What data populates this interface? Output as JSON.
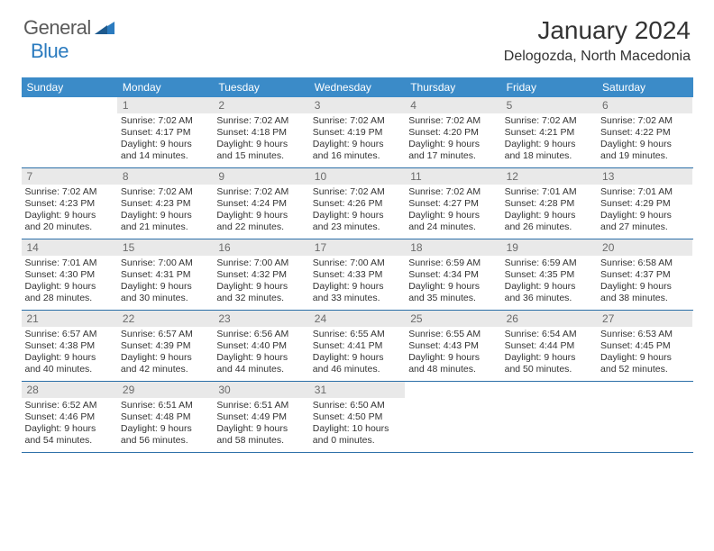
{
  "brand": {
    "text_general": "General",
    "text_blue": "Blue",
    "icon_color": "#2b7bbf"
  },
  "header": {
    "month_title": "January 2024",
    "location": "Delogozda, North Macedonia"
  },
  "colors": {
    "header_row_bg": "#3b8bc8",
    "header_row_text": "#ffffff",
    "daynum_bg": "#e9e9e9",
    "daynum_text": "#6b6b6b",
    "week_divider": "#2b6fa8",
    "body_text": "#333333",
    "background": "#ffffff"
  },
  "day_names": [
    "Sunday",
    "Monday",
    "Tuesday",
    "Wednesday",
    "Thursday",
    "Friday",
    "Saturday"
  ],
  "weeks": [
    [
      {
        "empty": true
      },
      {
        "num": "1",
        "sunrise": "Sunrise: 7:02 AM",
        "sunset": "Sunset: 4:17 PM",
        "daylight": "Daylight: 9 hours and 14 minutes."
      },
      {
        "num": "2",
        "sunrise": "Sunrise: 7:02 AM",
        "sunset": "Sunset: 4:18 PM",
        "daylight": "Daylight: 9 hours and 15 minutes."
      },
      {
        "num": "3",
        "sunrise": "Sunrise: 7:02 AM",
        "sunset": "Sunset: 4:19 PM",
        "daylight": "Daylight: 9 hours and 16 minutes."
      },
      {
        "num": "4",
        "sunrise": "Sunrise: 7:02 AM",
        "sunset": "Sunset: 4:20 PM",
        "daylight": "Daylight: 9 hours and 17 minutes."
      },
      {
        "num": "5",
        "sunrise": "Sunrise: 7:02 AM",
        "sunset": "Sunset: 4:21 PM",
        "daylight": "Daylight: 9 hours and 18 minutes."
      },
      {
        "num": "6",
        "sunrise": "Sunrise: 7:02 AM",
        "sunset": "Sunset: 4:22 PM",
        "daylight": "Daylight: 9 hours and 19 minutes."
      }
    ],
    [
      {
        "num": "7",
        "sunrise": "Sunrise: 7:02 AM",
        "sunset": "Sunset: 4:23 PM",
        "daylight": "Daylight: 9 hours and 20 minutes."
      },
      {
        "num": "8",
        "sunrise": "Sunrise: 7:02 AM",
        "sunset": "Sunset: 4:23 PM",
        "daylight": "Daylight: 9 hours and 21 minutes."
      },
      {
        "num": "9",
        "sunrise": "Sunrise: 7:02 AM",
        "sunset": "Sunset: 4:24 PM",
        "daylight": "Daylight: 9 hours and 22 minutes."
      },
      {
        "num": "10",
        "sunrise": "Sunrise: 7:02 AM",
        "sunset": "Sunset: 4:26 PM",
        "daylight": "Daylight: 9 hours and 23 minutes."
      },
      {
        "num": "11",
        "sunrise": "Sunrise: 7:02 AM",
        "sunset": "Sunset: 4:27 PM",
        "daylight": "Daylight: 9 hours and 24 minutes."
      },
      {
        "num": "12",
        "sunrise": "Sunrise: 7:01 AM",
        "sunset": "Sunset: 4:28 PM",
        "daylight": "Daylight: 9 hours and 26 minutes."
      },
      {
        "num": "13",
        "sunrise": "Sunrise: 7:01 AM",
        "sunset": "Sunset: 4:29 PM",
        "daylight": "Daylight: 9 hours and 27 minutes."
      }
    ],
    [
      {
        "num": "14",
        "sunrise": "Sunrise: 7:01 AM",
        "sunset": "Sunset: 4:30 PM",
        "daylight": "Daylight: 9 hours and 28 minutes."
      },
      {
        "num": "15",
        "sunrise": "Sunrise: 7:00 AM",
        "sunset": "Sunset: 4:31 PM",
        "daylight": "Daylight: 9 hours and 30 minutes."
      },
      {
        "num": "16",
        "sunrise": "Sunrise: 7:00 AM",
        "sunset": "Sunset: 4:32 PM",
        "daylight": "Daylight: 9 hours and 32 minutes."
      },
      {
        "num": "17",
        "sunrise": "Sunrise: 7:00 AM",
        "sunset": "Sunset: 4:33 PM",
        "daylight": "Daylight: 9 hours and 33 minutes."
      },
      {
        "num": "18",
        "sunrise": "Sunrise: 6:59 AM",
        "sunset": "Sunset: 4:34 PM",
        "daylight": "Daylight: 9 hours and 35 minutes."
      },
      {
        "num": "19",
        "sunrise": "Sunrise: 6:59 AM",
        "sunset": "Sunset: 4:35 PM",
        "daylight": "Daylight: 9 hours and 36 minutes."
      },
      {
        "num": "20",
        "sunrise": "Sunrise: 6:58 AM",
        "sunset": "Sunset: 4:37 PM",
        "daylight": "Daylight: 9 hours and 38 minutes."
      }
    ],
    [
      {
        "num": "21",
        "sunrise": "Sunrise: 6:57 AM",
        "sunset": "Sunset: 4:38 PM",
        "daylight": "Daylight: 9 hours and 40 minutes."
      },
      {
        "num": "22",
        "sunrise": "Sunrise: 6:57 AM",
        "sunset": "Sunset: 4:39 PM",
        "daylight": "Daylight: 9 hours and 42 minutes."
      },
      {
        "num": "23",
        "sunrise": "Sunrise: 6:56 AM",
        "sunset": "Sunset: 4:40 PM",
        "daylight": "Daylight: 9 hours and 44 minutes."
      },
      {
        "num": "24",
        "sunrise": "Sunrise: 6:55 AM",
        "sunset": "Sunset: 4:41 PM",
        "daylight": "Daylight: 9 hours and 46 minutes."
      },
      {
        "num": "25",
        "sunrise": "Sunrise: 6:55 AM",
        "sunset": "Sunset: 4:43 PM",
        "daylight": "Daylight: 9 hours and 48 minutes."
      },
      {
        "num": "26",
        "sunrise": "Sunrise: 6:54 AM",
        "sunset": "Sunset: 4:44 PM",
        "daylight": "Daylight: 9 hours and 50 minutes."
      },
      {
        "num": "27",
        "sunrise": "Sunrise: 6:53 AM",
        "sunset": "Sunset: 4:45 PM",
        "daylight": "Daylight: 9 hours and 52 minutes."
      }
    ],
    [
      {
        "num": "28",
        "sunrise": "Sunrise: 6:52 AM",
        "sunset": "Sunset: 4:46 PM",
        "daylight": "Daylight: 9 hours and 54 minutes."
      },
      {
        "num": "29",
        "sunrise": "Sunrise: 6:51 AM",
        "sunset": "Sunset: 4:48 PM",
        "daylight": "Daylight: 9 hours and 56 minutes."
      },
      {
        "num": "30",
        "sunrise": "Sunrise: 6:51 AM",
        "sunset": "Sunset: 4:49 PM",
        "daylight": "Daylight: 9 hours and 58 minutes."
      },
      {
        "num": "31",
        "sunrise": "Sunrise: 6:50 AM",
        "sunset": "Sunset: 4:50 PM",
        "daylight": "Daylight: 10 hours and 0 minutes."
      },
      {
        "empty": true
      },
      {
        "empty": true
      },
      {
        "empty": true
      }
    ]
  ]
}
